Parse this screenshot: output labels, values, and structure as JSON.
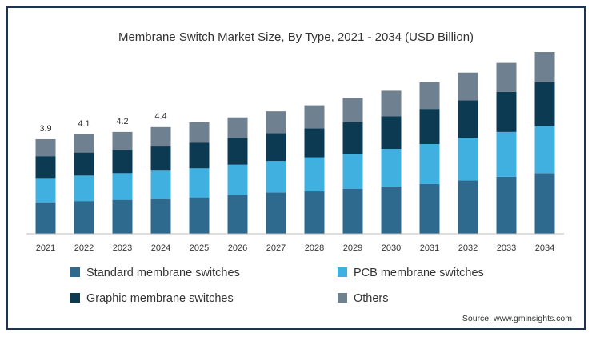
{
  "chart_data": {
    "type": "stacked-bar",
    "title": "Membrane Switch Market Size, By Type, 2021 - 2034 (USD Billion)",
    "categories": [
      "2021",
      "2022",
      "2023",
      "2024",
      "2025",
      "2026",
      "2027",
      "2028",
      "2029",
      "2030",
      "2031",
      "2032",
      "2033",
      "2034"
    ],
    "series": [
      {
        "name": "Standard membrane switches",
        "color": "#2e6a8e",
        "values": [
          1.3,
          1.35,
          1.4,
          1.45,
          1.5,
          1.6,
          1.7,
          1.75,
          1.85,
          1.95,
          2.05,
          2.2,
          2.35,
          2.5
        ]
      },
      {
        "name": "PCB membrane switches",
        "color": "#3fb0e0",
        "values": [
          1.0,
          1.05,
          1.1,
          1.15,
          1.2,
          1.25,
          1.3,
          1.4,
          1.45,
          1.55,
          1.65,
          1.75,
          1.85,
          1.95
        ]
      },
      {
        "name": "Graphic membrane switches",
        "color": "#0c3a52",
        "values": [
          0.9,
          0.95,
          0.95,
          1.0,
          1.05,
          1.1,
          1.15,
          1.2,
          1.3,
          1.35,
          1.45,
          1.55,
          1.65,
          1.8
        ]
      },
      {
        "name": "Others",
        "color": "#6f8090",
        "values": [
          0.7,
          0.75,
          0.75,
          0.8,
          0.85,
          0.85,
          0.9,
          0.95,
          1.0,
          1.05,
          1.1,
          1.15,
          1.2,
          1.25
        ]
      }
    ],
    "totals": [
      3.9,
      4.1,
      4.2,
      4.4,
      null,
      null,
      null,
      null,
      null,
      null,
      null,
      null,
      null,
      null
    ],
    "ylim": [
      0,
      7.5
    ],
    "source": "Source: www.gminsights.com"
  }
}
